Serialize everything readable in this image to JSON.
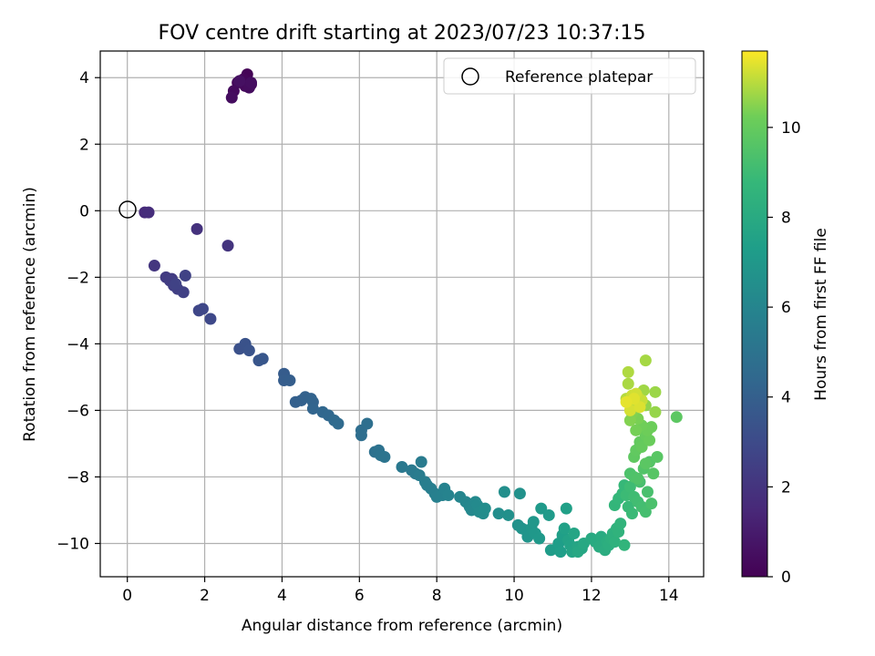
{
  "chart_data": {
    "type": "scatter",
    "title": "FOV centre drift starting at 2023/07/23 10:37:15",
    "xlabel": "Angular distance from reference (arcmin)",
    "ylabel": "Rotation from reference (arcmin)",
    "xlim": [
      -0.7,
      14.9
    ],
    "ylim": [
      -11.0,
      4.8
    ],
    "xticks": [
      0,
      2,
      4,
      6,
      8,
      10,
      12,
      14
    ],
    "yticks": [
      -10,
      -8,
      -6,
      -4,
      -2,
      0,
      2,
      4
    ],
    "grid": true,
    "legend": {
      "placement": "top-right",
      "entries": [
        "Reference platepar"
      ]
    },
    "reference_point": {
      "x": 0,
      "y": 0,
      "label": "Reference platepar"
    },
    "colorbar": {
      "label": "Hours from first FF file",
      "range": [
        0,
        11.7
      ],
      "ticks": [
        0,
        2,
        4,
        6,
        8,
        10
      ],
      "colormap": "viridis"
    },
    "points": [
      [
        3.1,
        4.1,
        0.1
      ],
      [
        3.2,
        3.8,
        0.15
      ],
      [
        3.0,
        3.95,
        0.2
      ],
      [
        2.85,
        3.85,
        0.25
      ],
      [
        3.05,
        3.75,
        0.3
      ],
      [
        2.75,
        3.6,
        0.35
      ],
      [
        3.15,
        3.7,
        0.4
      ],
      [
        2.7,
        3.4,
        0.45
      ],
      [
        3.2,
        3.85,
        0.5
      ],
      [
        2.9,
        3.9,
        0.55
      ],
      [
        0.45,
        -0.05,
        1.6
      ],
      [
        0.55,
        -0.05,
        1.7
      ],
      [
        1.8,
        -0.55,
        1.9
      ],
      [
        2.6,
        -1.05,
        2.0
      ],
      [
        0.7,
        -1.65,
        2.1
      ],
      [
        1.0,
        -2.0,
        2.3
      ],
      [
        1.15,
        -2.05,
        2.35
      ],
      [
        1.1,
        -2.1,
        2.4
      ],
      [
        1.2,
        -2.25,
        2.45
      ],
      [
        1.3,
        -2.35,
        2.5
      ],
      [
        1.45,
        -2.45,
        2.55
      ],
      [
        1.5,
        -1.95,
        2.6
      ],
      [
        1.25,
        -2.2,
        2.62
      ],
      [
        1.85,
        -3.0,
        2.8
      ],
      [
        1.95,
        -2.95,
        2.85
      ],
      [
        2.15,
        -3.25,
        2.9
      ],
      [
        2.9,
        -4.15,
        3.3
      ],
      [
        3.05,
        -4.0,
        3.35
      ],
      [
        3.15,
        -4.2,
        3.4
      ],
      [
        3.4,
        -4.5,
        3.5
      ],
      [
        3.5,
        -4.45,
        3.55
      ],
      [
        4.05,
        -4.9,
        3.8
      ],
      [
        4.05,
        -5.1,
        3.85
      ],
      [
        4.2,
        -5.1,
        3.9
      ],
      [
        4.35,
        -5.75,
        4.0
      ],
      [
        4.5,
        -5.7,
        4.05
      ],
      [
        4.6,
        -5.6,
        4.1
      ],
      [
        4.75,
        -5.65,
        4.15
      ],
      [
        4.8,
        -5.75,
        4.2
      ],
      [
        4.8,
        -5.95,
        4.25
      ],
      [
        5.05,
        -6.05,
        4.35
      ],
      [
        5.2,
        -6.15,
        4.4
      ],
      [
        5.35,
        -6.3,
        4.5
      ],
      [
        5.45,
        -6.4,
        4.55
      ],
      [
        6.05,
        -6.6,
        4.7
      ],
      [
        6.05,
        -6.75,
        4.75
      ],
      [
        6.2,
        -6.4,
        4.8
      ],
      [
        6.4,
        -7.25,
        4.9
      ],
      [
        6.5,
        -7.2,
        4.95
      ],
      [
        6.55,
        -7.35,
        5.0
      ],
      [
        6.65,
        -7.4,
        5.05
      ],
      [
        7.1,
        -7.7,
        5.3
      ],
      [
        7.35,
        -7.8,
        5.35
      ],
      [
        7.45,
        -7.9,
        5.4
      ],
      [
        7.6,
        -7.55,
        5.45
      ],
      [
        7.55,
        -7.95,
        5.5
      ],
      [
        7.7,
        -8.15,
        5.55
      ],
      [
        7.75,
        -8.25,
        5.6
      ],
      [
        7.85,
        -8.35,
        5.65
      ],
      [
        7.95,
        -8.5,
        5.7
      ],
      [
        8.0,
        -8.6,
        5.75
      ],
      [
        8.15,
        -8.55,
        5.8
      ],
      [
        8.2,
        -8.35,
        5.85
      ],
      [
        8.3,
        -8.55,
        5.9
      ],
      [
        8.6,
        -8.6,
        6.0
      ],
      [
        8.75,
        -8.75,
        6.05
      ],
      [
        8.85,
        -8.9,
        6.1
      ],
      [
        8.9,
        -9.0,
        6.15
      ],
      [
        9.0,
        -8.75,
        6.2
      ],
      [
        9.05,
        -8.85,
        6.25
      ],
      [
        9.1,
        -9.05,
        6.3
      ],
      [
        9.2,
        -9.1,
        6.35
      ],
      [
        9.25,
        -8.95,
        6.4
      ],
      [
        9.6,
        -9.1,
        6.5
      ],
      [
        9.75,
        -8.45,
        6.55
      ],
      [
        9.85,
        -9.15,
        6.6
      ],
      [
        10.15,
        -8.5,
        6.65
      ],
      [
        10.1,
        -9.45,
        6.7
      ],
      [
        10.2,
        -9.55,
        6.75
      ],
      [
        10.3,
        -9.6,
        6.8
      ],
      [
        10.35,
        -9.8,
        6.85
      ],
      [
        10.45,
        -9.55,
        6.9
      ],
      [
        10.5,
        -9.35,
        6.95
      ],
      [
        10.55,
        -9.7,
        7.0
      ],
      [
        10.65,
        -9.85,
        7.05
      ],
      [
        10.7,
        -8.95,
        7.1
      ],
      [
        10.9,
        -9.15,
        7.15
      ],
      [
        10.95,
        -10.2,
        7.2
      ],
      [
        11.1,
        -10.15,
        7.25
      ],
      [
        11.15,
        -10.0,
        7.3
      ],
      [
        11.2,
        -10.25,
        7.35
      ],
      [
        11.25,
        -9.75,
        7.4
      ],
      [
        11.35,
        -8.95,
        7.45
      ],
      [
        11.3,
        -9.55,
        7.5
      ],
      [
        11.4,
        -9.9,
        7.55
      ],
      [
        11.45,
        -10.05,
        7.6
      ],
      [
        11.5,
        -10.25,
        7.65
      ],
      [
        11.55,
        -9.7,
        7.7
      ],
      [
        11.65,
        -10.1,
        7.75
      ],
      [
        11.75,
        -10.15,
        7.8
      ],
      [
        11.65,
        -10.25,
        7.85
      ],
      [
        11.8,
        -10.0,
        7.9
      ],
      [
        12.0,
        -9.85,
        7.95
      ],
      [
        12.1,
        -9.95,
        8.0
      ],
      [
        12.25,
        -9.8,
        8.05
      ],
      [
        12.2,
        -10.1,
        8.1
      ],
      [
        12.35,
        -10.2,
        8.15
      ],
      [
        12.4,
        -9.95,
        8.2
      ],
      [
        12.45,
        -10.05,
        8.25
      ],
      [
        12.5,
        -9.85,
        8.3
      ],
      [
        12.55,
        -9.7,
        8.35
      ],
      [
        12.6,
        -9.95,
        8.4
      ],
      [
        12.65,
        -9.55,
        8.45
      ],
      [
        12.7,
        -9.65,
        8.5
      ],
      [
        12.75,
        -9.4,
        8.55
      ],
      [
        12.85,
        -10.05,
        8.6
      ],
      [
        12.6,
        -8.85,
        8.65
      ],
      [
        12.7,
        -8.65,
        8.7
      ],
      [
        12.8,
        -8.5,
        8.75
      ],
      [
        12.85,
        -8.25,
        8.8
      ],
      [
        12.95,
        -8.9,
        8.85
      ],
      [
        13.05,
        -9.1,
        8.9
      ],
      [
        12.9,
        -8.55,
        8.95
      ],
      [
        13.0,
        -8.3,
        9.0
      ],
      [
        13.1,
        -8.6,
        9.05
      ],
      [
        13.2,
        -8.75,
        9.1
      ],
      [
        13.3,
        -8.9,
        9.15
      ],
      [
        13.4,
        -9.05,
        9.2
      ],
      [
        13.25,
        -8.15,
        9.25
      ],
      [
        13.45,
        -8.45,
        9.3
      ],
      [
        13.55,
        -8.8,
        9.35
      ],
      [
        13.0,
        -7.9,
        9.4
      ],
      [
        13.1,
        -8.0,
        9.45
      ],
      [
        13.2,
        -8.05,
        9.5
      ],
      [
        13.35,
        -7.75,
        9.55
      ],
      [
        13.5,
        -7.55,
        9.6
      ],
      [
        13.6,
        -7.9,
        9.65
      ],
      [
        13.7,
        -7.4,
        9.7
      ],
      [
        13.4,
        -7.6,
        9.75
      ],
      [
        14.2,
        -6.2,
        9.8
      ],
      [
        13.1,
        -7.4,
        9.85
      ],
      [
        13.15,
        -7.2,
        9.9
      ],
      [
        13.25,
        -6.95,
        9.95
      ],
      [
        13.3,
        -7.1,
        10.0
      ],
      [
        13.4,
        -6.75,
        10.05
      ],
      [
        13.5,
        -6.9,
        10.1
      ],
      [
        13.55,
        -6.5,
        10.15
      ],
      [
        13.45,
        -6.6,
        10.2
      ],
      [
        13.3,
        -6.45,
        10.25
      ],
      [
        13.15,
        -6.6,
        10.3
      ],
      [
        13.2,
        -6.25,
        10.35
      ],
      [
        13.05,
        -6.1,
        10.4
      ],
      [
        13.0,
        -6.3,
        10.45
      ],
      [
        13.1,
        -5.95,
        10.5
      ],
      [
        13.25,
        -5.75,
        10.55
      ],
      [
        13.4,
        -5.85,
        10.6
      ],
      [
        13.65,
        -6.05,
        10.65
      ],
      [
        13.65,
        -5.45,
        10.7
      ],
      [
        13.35,
        -5.4,
        10.75
      ],
      [
        13.4,
        -4.5,
        10.8
      ],
      [
        12.95,
        -5.2,
        10.85
      ],
      [
        12.95,
        -4.85,
        10.9
      ],
      [
        12.9,
        -5.65,
        10.95
      ],
      [
        13.0,
        -5.75,
        11.0
      ],
      [
        13.1,
        -5.8,
        11.05
      ],
      [
        13.2,
        -5.6,
        11.1
      ],
      [
        13.3,
        -5.7,
        11.15
      ],
      [
        13.05,
        -5.55,
        11.2
      ],
      [
        13.15,
        -5.5,
        11.25
      ],
      [
        13.0,
        -6.0,
        11.3
      ],
      [
        13.25,
        -5.9,
        11.35
      ],
      [
        13.1,
        -5.65,
        11.4
      ],
      [
        12.9,
        -5.75,
        11.45
      ]
    ]
  }
}
